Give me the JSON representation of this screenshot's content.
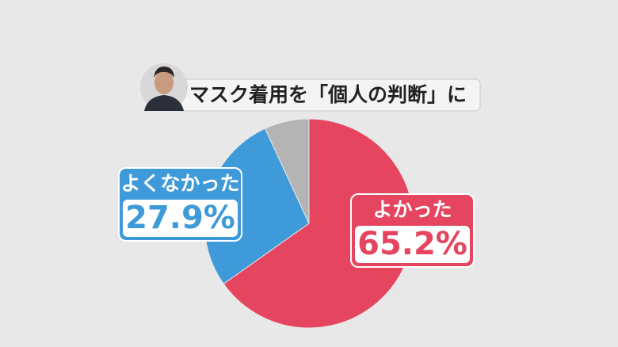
{
  "chart_data": {
    "type": "pie",
    "title": "マスク着用を「個人の判断」に",
    "categories": [
      "よかった",
      "よくなかった",
      null
    ],
    "values": [
      65.2,
      27.9,
      6.9
    ],
    "value_labels": [
      "65.2%",
      "27.9%",
      null
    ],
    "colors": [
      "#e5455f",
      "#3e9ad8",
      "#b4b4b4"
    ]
  }
}
